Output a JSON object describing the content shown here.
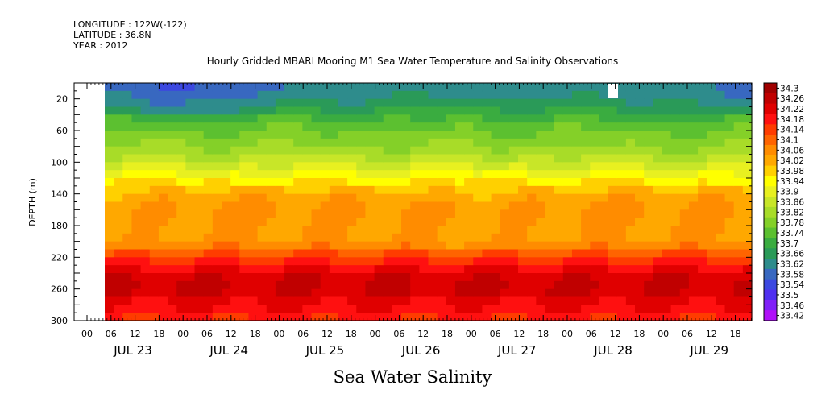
{
  "header": {
    "meta_lines": [
      "LONGITUDE : 122W(-122)",
      "LATITUDE : 36.8N",
      "YEAR : 2012"
    ],
    "title": "Hourly Gridded MBARI Mooring M1 Sea Water Temperature and Salinity Observations"
  },
  "chart_data": {
    "type": "heatmap",
    "title": "Hourly Gridded MBARI Mooring M1 Sea Water Temperature and Salinity Observations",
    "subtitle": "Sea Water Salinity",
    "ylabel": "DEPTH (m)",
    "xlabel": "",
    "y_ticks": [
      20,
      60,
      100,
      140,
      180,
      220,
      260,
      300
    ],
    "ylim": [
      300,
      0
    ],
    "x_hour_ticks": [
      "00",
      "06",
      "12",
      "18",
      "00",
      "06",
      "12",
      "18",
      "00",
      "06",
      "12",
      "18",
      "00",
      "06",
      "12",
      "18",
      "00",
      "06",
      "12",
      "18",
      "00",
      "06",
      "12",
      "18",
      "00",
      "06",
      "12",
      "18",
      "00",
      "06",
      "12",
      "18"
    ],
    "x_day_labels": [
      "JUL 23",
      "JUL 24",
      "JUL 25",
      "JUL 26",
      "JUL 27",
      "JUL 28",
      "JUL 29"
    ],
    "colorbar_levels": [
      "34.3",
      "34.26",
      "34.22",
      "34.18",
      "34.14",
      "34.1",
      "34.06",
      "34.02",
      "33.98",
      "33.94",
      "33.9",
      "33.86",
      "33.82",
      "33.78",
      "33.74",
      "33.7",
      "33.66",
      "33.62",
      "33.58",
      "33.54",
      "33.5",
      "33.46",
      "33.42"
    ],
    "depth_profile": {
      "depths": [
        10,
        20,
        40,
        60,
        80,
        100,
        120,
        140,
        160,
        180,
        200,
        220,
        240,
        260,
        280,
        300
      ],
      "salinity": [
        33.64,
        33.66,
        33.72,
        33.78,
        33.82,
        33.88,
        33.96,
        34.04,
        34.07,
        34.06,
        34.06,
        34.16,
        34.24,
        34.27,
        34.22,
        34.18
      ]
    },
    "grid": false,
    "legend": "right colorbar"
  }
}
